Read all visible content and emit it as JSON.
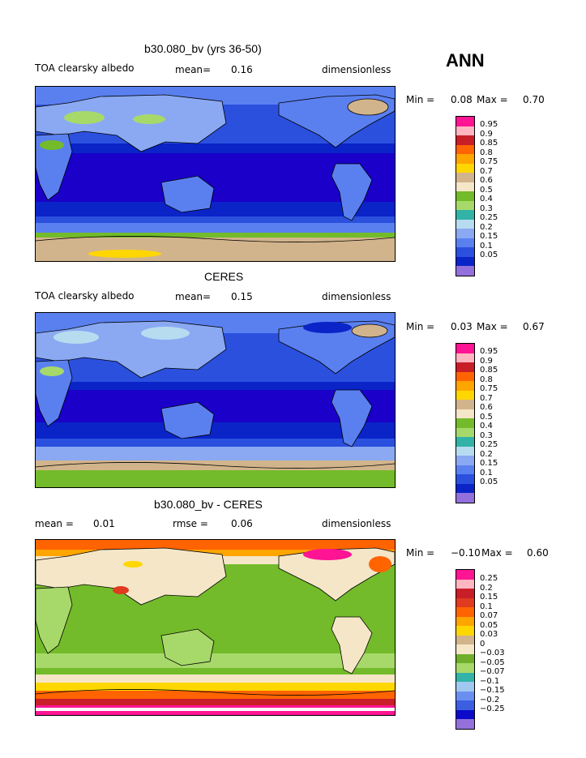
{
  "season": "ANN",
  "colors": {
    "abs": [
      "#1a00c8",
      "#0a24c8",
      "#2b50de",
      "#5a80f0",
      "#8aa9f2",
      "#b7dcf0",
      "#33b3a7",
      "#a7d96a",
      "#73bb2a",
      "#e7c99b",
      "#d2b48c",
      "#ffd700",
      "#ffa500",
      "#ff6400",
      "#e03a20",
      "#c81e28",
      "#ffb6c1",
      "#ff1493"
    ],
    "diff": [
      "#9370db",
      "#0a0ac8",
      "#3b5fe0",
      "#6b8ff0",
      "#a0c8f0",
      "#33b3a7",
      "#a7d96a",
      "#6fae2a",
      "#f5e6c8",
      "#d2b48c",
      "#ffd700",
      "#ffa500",
      "#ff6400",
      "#e03a20",
      "#c81e28",
      "#ffb6c1",
      "#ff1493"
    ]
  },
  "panels": [
    {
      "title": "b30.080_bv (yrs 36-50)",
      "left_label": "TOA clearsky albedo",
      "mean_label": "mean=",
      "mean_value": "0.16",
      "units": "dimensionless",
      "min_label": "Min =",
      "min_value": "0.08",
      "max_label": "Max =",
      "max_value": "0.70",
      "colorbar_labels": [
        "0.95",
        "0.9",
        "0.85",
        "0.8",
        "0.75",
        "0.7",
        "0.6",
        "0.5",
        "0.4",
        "0.3",
        "0.25",
        "0.2",
        "0.15",
        "0.1",
        "0.05"
      ]
    },
    {
      "title": "CERES",
      "left_label": "TOA clearsky albedo",
      "mean_label": "mean=",
      "mean_value": "0.15",
      "units": "dimensionless",
      "min_label": "Min =",
      "min_value": "0.03",
      "max_label": "Max =",
      "max_value": "0.67",
      "colorbar_labels": [
        "0.95",
        "0.9",
        "0.85",
        "0.8",
        "0.75",
        "0.7",
        "0.6",
        "0.5",
        "0.4",
        "0.3",
        "0.25",
        "0.2",
        "0.15",
        "0.1",
        "0.05"
      ]
    },
    {
      "title": "b30.080_bv - CERES",
      "mean_label": "mean =",
      "mean_value": "0.01",
      "rmse_label": "rmse =",
      "rmse_value": "0.06",
      "units": "dimensionless",
      "min_label": "Min =",
      "min_value": "−0.10",
      "max_label": "Max =",
      "max_value": "0.60",
      "colorbar_labels": [
        "0.25",
        "0.2",
        "0.15",
        "0.1",
        "0.07",
        "0.05",
        "0.03",
        "0",
        "−0.03",
        "−0.05",
        "−0.07",
        "−0.1",
        "−0.15",
        "−0.2",
        "−0.25"
      ]
    }
  ]
}
